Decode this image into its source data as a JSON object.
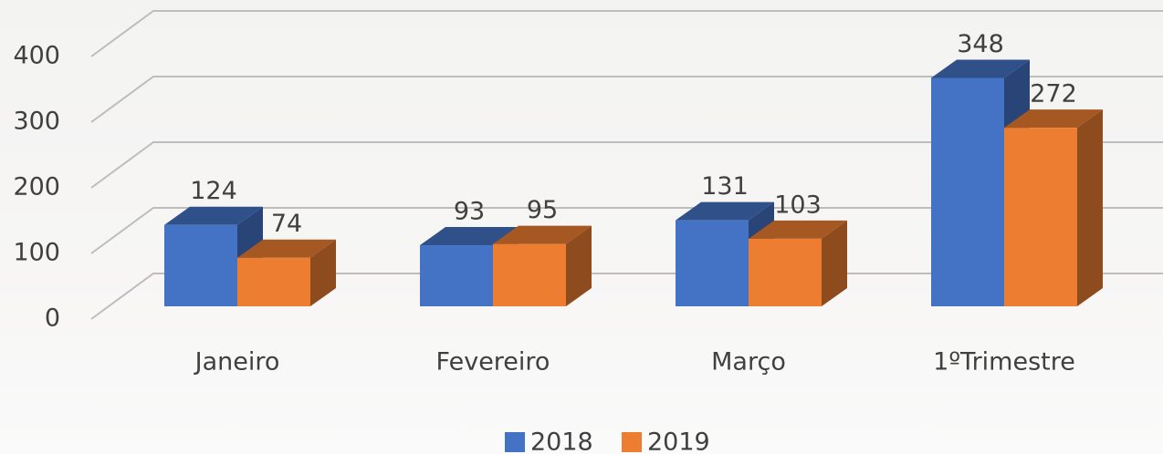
{
  "chart_data": {
    "type": "bar3d",
    "categories": [
      "Janeiro",
      "Fevereiro",
      "Março",
      "1ºTrimestre"
    ],
    "series": [
      {
        "name": "2018",
        "color": "#4472c4",
        "values": [
          124,
          93,
          131,
          348
        ]
      },
      {
        "name": "2019",
        "color": "#ed7d31",
        "values": [
          74,
          95,
          103,
          272
        ]
      }
    ],
    "ylim": [
      0,
      400
    ],
    "yticks": [
      0,
      100,
      200,
      300,
      400
    ],
    "grid": true,
    "legend": "bottom"
  }
}
